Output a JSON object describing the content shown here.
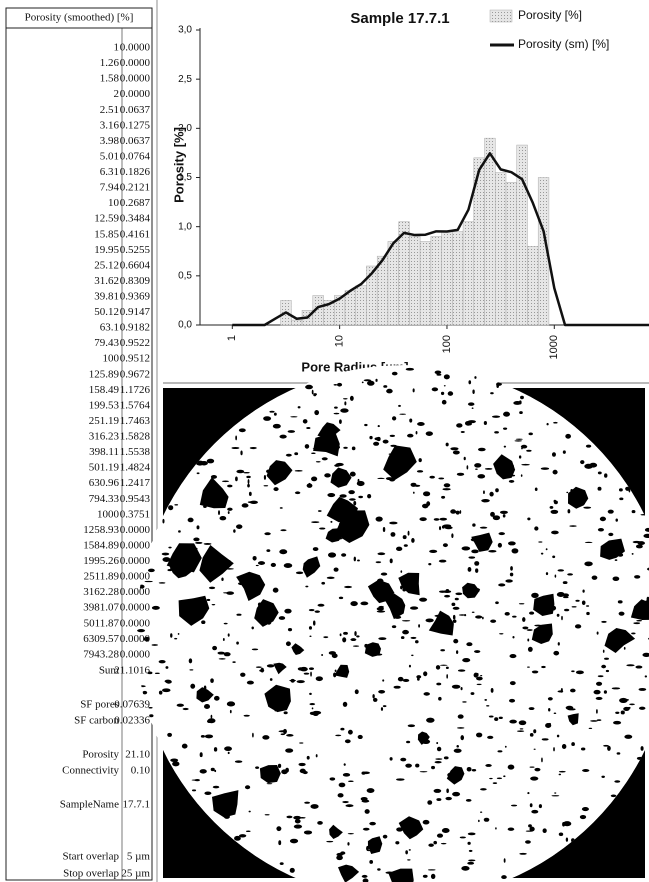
{
  "table": {
    "header": "Porosity (smoothed) [%]",
    "rows": [
      [
        "1",
        "0.0000"
      ],
      [
        "1.26",
        "0.0000"
      ],
      [
        "1.58",
        "0.0000"
      ],
      [
        "2",
        "0.0000"
      ],
      [
        "2.51",
        "0.0637"
      ],
      [
        "3.16",
        "0.1275"
      ],
      [
        "3.98",
        "0.0637"
      ],
      [
        "5.01",
        "0.0764"
      ],
      [
        "6.31",
        "0.1826"
      ],
      [
        "7.94",
        "0.2121"
      ],
      [
        "10",
        "0.2687"
      ],
      [
        "12.59",
        "0.3484"
      ],
      [
        "15.85",
        "0.4161"
      ],
      [
        "19.95",
        "0.5255"
      ],
      [
        "25.12",
        "0.6604"
      ],
      [
        "31.62",
        "0.8309"
      ],
      [
        "39.81",
        "0.9369"
      ],
      [
        "50.12",
        "0.9147"
      ],
      [
        "63.1",
        "0.9182"
      ],
      [
        "79.43",
        "0.9522"
      ],
      [
        "100",
        "0.9512"
      ],
      [
        "125.89",
        "0.9672"
      ],
      [
        "158.49",
        "1.1726"
      ],
      [
        "199.53",
        "1.5764"
      ],
      [
        "251.19",
        "1.7463"
      ],
      [
        "316.23",
        "1.5828"
      ],
      [
        "398.11",
        "1.5538"
      ],
      [
        "501.19",
        "1.4824"
      ],
      [
        "630.96",
        "1.2417"
      ],
      [
        "794.33",
        "0.9543"
      ],
      [
        "1000",
        "0.3751"
      ],
      [
        "1258.93",
        "0.0000"
      ],
      [
        "1584.89",
        "0.0000"
      ],
      [
        "1995.26",
        "0.0000"
      ],
      [
        "2511.89",
        "0.0000"
      ],
      [
        "3162.28",
        "0.0000"
      ],
      [
        "3981.07",
        "0.0000"
      ],
      [
        "5011.87",
        "0.0000"
      ],
      [
        "6309.57",
        "0.0000"
      ],
      [
        "7943.28",
        "0.0000"
      ]
    ],
    "summary": [
      [
        "Sum",
        "21.1016"
      ],
      [
        "SF pores",
        "0.07639"
      ],
      [
        "SF carbon",
        "0.02336"
      ],
      [
        "Porosity",
        "21.10"
      ],
      [
        "Connectivity",
        "0.10"
      ],
      [
        "SampleName",
        "17.7.1"
      ],
      [
        "Start overlap",
        "5 µm"
      ],
      [
        "Stop overlap",
        "25 µm"
      ]
    ]
  },
  "chart_data": {
    "type": "bar-line",
    "title": "Sample 17.7.1",
    "x_label": "Pore Radius [µm]",
    "y_label": "Porosity [%]",
    "log_x": true,
    "xlim": [
      0.5,
      7000
    ],
    "xticks": [
      1,
      10,
      100,
      1000
    ],
    "ylim": [
      0,
      3.0
    ],
    "yticks": [
      {
        "value": 0,
        "label": "0,0"
      },
      {
        "value": 0.5,
        "label": "0,5"
      },
      {
        "value": 1,
        "label": "1,0"
      },
      {
        "value": 1.5,
        "label": "1,5"
      },
      {
        "value": 2,
        "label": "2,0"
      },
      {
        "value": 2.5,
        "label": "2,5"
      },
      {
        "value": 3,
        "label": "3,0"
      }
    ],
    "x": [
      1,
      1.26,
      1.58,
      2,
      2.51,
      3.16,
      3.98,
      5.01,
      6.31,
      7.94,
      10,
      12.59,
      15.85,
      19.95,
      25.12,
      31.62,
      39.81,
      50.12,
      63.1,
      79.43,
      100,
      125.89,
      158.49,
      199.53,
      251.19,
      316.23,
      398.11,
      501.19,
      630.96,
      794.33,
      1000,
      1258.93,
      1584.89,
      1995.26,
      2511.89,
      3162.28,
      3981.07,
      5011.87,
      6309.57,
      7943.28
    ],
    "series": [
      {
        "name": "Porosity [%]",
        "kind": "bar",
        "color": "#d8d8d8",
        "values": [
          0,
          0,
          0,
          0,
          0,
          0.25,
          0.05,
          0.15,
          0.3,
          0.25,
          0.3,
          0.35,
          0.4,
          0.6,
          0.7,
          0.85,
          1.05,
          0.9,
          0.85,
          0.9,
          0.95,
          0.95,
          1.05,
          1.7,
          1.9,
          1.55,
          1.45,
          1.83,
          0.8,
          1.5,
          0,
          0,
          0,
          0,
          0,
          0,
          0,
          0,
          0,
          0
        ]
      },
      {
        "name": "Porosity (sm) [%]",
        "kind": "line",
        "color": "#111111",
        "values": [
          0,
          0,
          0,
          0,
          0.0637,
          0.1275,
          0.0637,
          0.0764,
          0.1826,
          0.2121,
          0.2687,
          0.3484,
          0.4161,
          0.5255,
          0.6604,
          0.8309,
          0.9369,
          0.9147,
          0.9182,
          0.9522,
          0.9512,
          0.9672,
          1.1726,
          1.5764,
          1.7463,
          1.5828,
          1.5538,
          1.4824,
          1.2417,
          0.9543,
          0.3751,
          0,
          0,
          0,
          0,
          0,
          0,
          0,
          0,
          0
        ]
      }
    ]
  }
}
